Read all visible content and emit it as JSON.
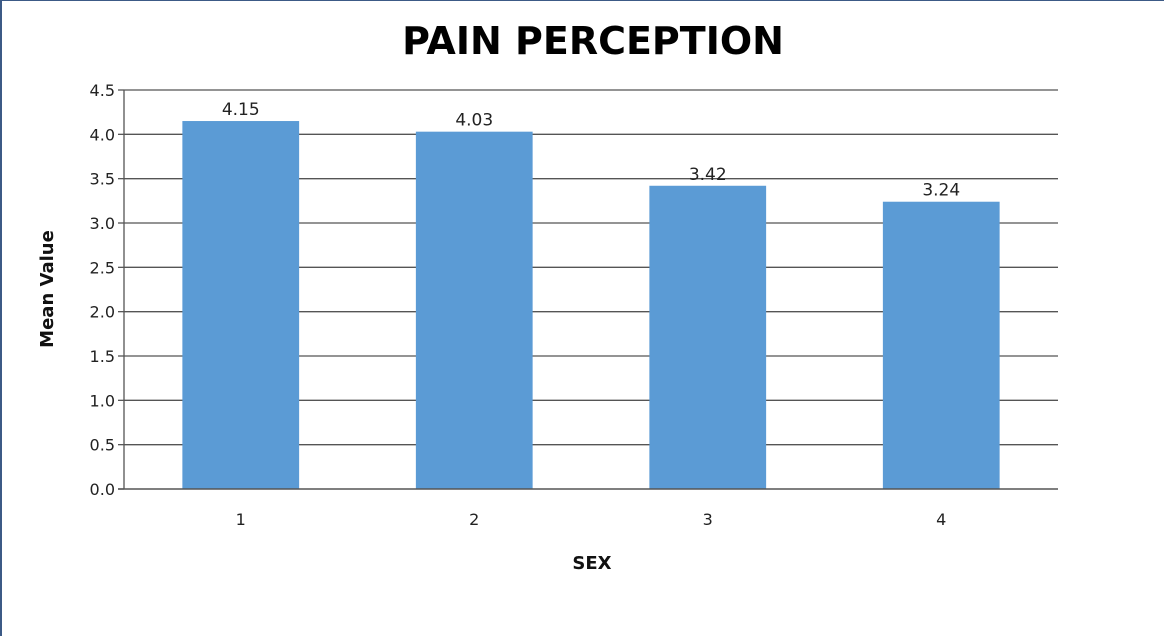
{
  "chart_data": {
    "type": "bar",
    "title": "PAIN PERCEPTION",
    "xlabel": "SEX",
    "ylabel": "Mean Value",
    "categories": [
      "1",
      "2",
      "3",
      "4"
    ],
    "values": [
      4.15,
      4.03,
      3.42,
      3.24
    ],
    "data_labels": [
      "4.15",
      "4.03",
      "3.42",
      "3.24"
    ],
    "ylim": [
      0,
      4.5
    ],
    "yticks": [
      "0.0",
      "0.5",
      "1.0",
      "1.5",
      "2.0",
      "2.5",
      "3.0",
      "3.5",
      "4.0",
      "4.5"
    ],
    "ytick_values": [
      0,
      0.5,
      1.0,
      1.5,
      2.0,
      2.5,
      3.0,
      3.5,
      4.0,
      4.5
    ],
    "grid": true,
    "legend": "none",
    "bar_color": "#5b9bd5",
    "grid_color": "#555555"
  }
}
